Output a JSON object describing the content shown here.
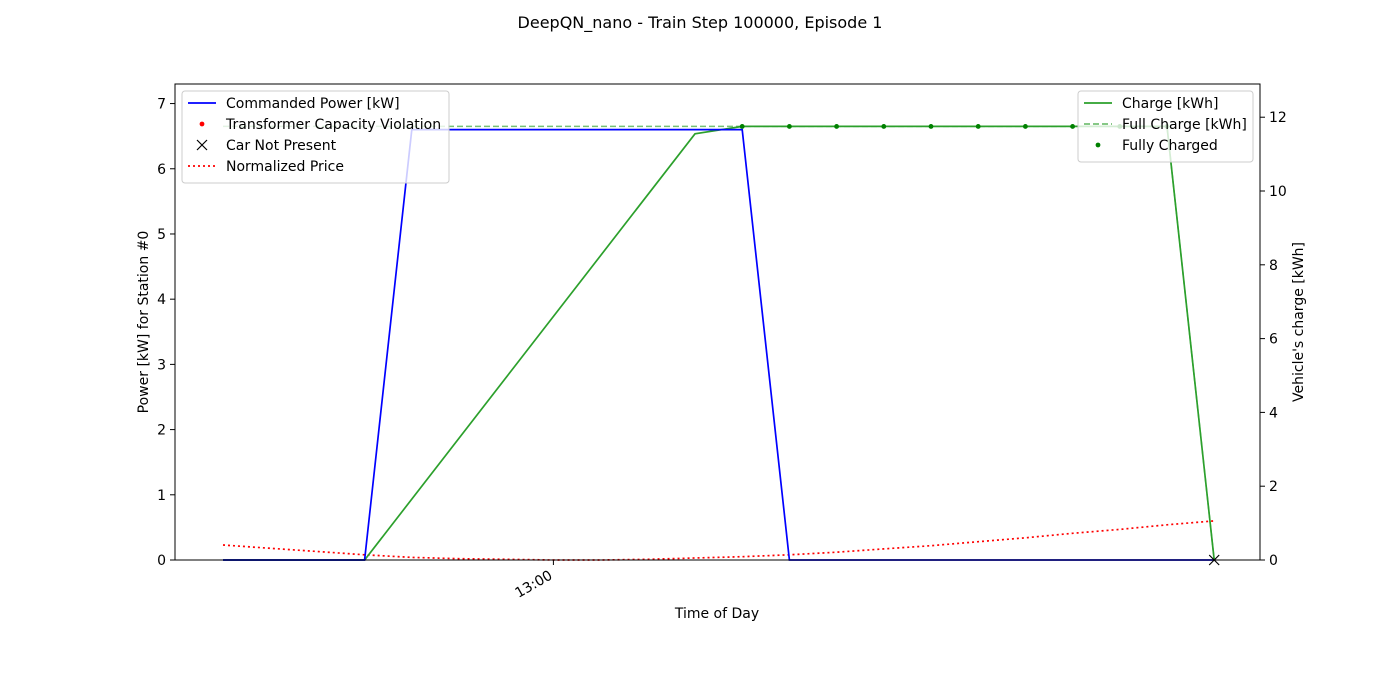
{
  "chart_data": {
    "type": "line",
    "title": "DeepQN_nano - Train Step 100000, Episode 1",
    "xlabel": "Time of Day",
    "ylabel_left": "Power [kW] for Station #0",
    "ylabel_right": "Vehicle's charge [kWh]",
    "x_tick_labels": [
      "13:00"
    ],
    "x_tick_step_index": 7,
    "x_steps": [
      0,
      1,
      2,
      3,
      4,
      5,
      6,
      7,
      8,
      9,
      10,
      11,
      12,
      13,
      14,
      15,
      16,
      17,
      18,
      19,
      20,
      21
    ],
    "ylim_left": [
      0,
      7.3
    ],
    "ylim_right": [
      0,
      12.9
    ],
    "yticks_left": [
      "0",
      "1",
      "2",
      "3",
      "4",
      "5",
      "6",
      "7"
    ],
    "yticks_right": [
      "0",
      "2",
      "4",
      "6",
      "8",
      "10",
      "12"
    ],
    "grid": false,
    "legend_left_placement": "upper-left",
    "legend_right_placement": "upper-right",
    "legend_left": [
      {
        "label": "Commanded Power [kW]",
        "marker": "line",
        "color": "#0000ff"
      },
      {
        "label": "Transformer Capacity Violation",
        "marker": "dot",
        "color": "#ff0000"
      },
      {
        "label": "Car Not Present",
        "marker": "x",
        "color": "#000000"
      },
      {
        "label": "Normalized Price",
        "marker": "dotted",
        "color": "#ff0000"
      }
    ],
    "legend_right": [
      {
        "label": "Charge [kWh]",
        "marker": "line",
        "color": "#2ca02c"
      },
      {
        "label": "Full Charge [kWh]",
        "marker": "dashed",
        "color": "#2ca02c"
      },
      {
        "label": "Fully Charged",
        "marker": "dot",
        "color": "#008000"
      }
    ],
    "series": [
      {
        "name": "Commanded Power [kW]",
        "axis": "left",
        "style": "solid",
        "color": "#0000ff",
        "x": [
          0,
          3,
          4,
          11,
          12,
          21
        ],
        "values": [
          0,
          0,
          6.6,
          6.6,
          0,
          0
        ]
      },
      {
        "name": "Normalized Price",
        "axis": "left",
        "style": "dotted",
        "color": "#ff0000",
        "x": [
          0,
          1,
          2,
          3,
          4,
          5,
          6,
          7,
          8,
          9,
          10,
          11,
          12,
          13,
          14,
          15,
          16,
          17,
          18,
          19,
          20,
          21
        ],
        "values": [
          0.23,
          0.18,
          0.13,
          0.08,
          0.04,
          0.02,
          0.01,
          0.0,
          0.0,
          0.01,
          0.03,
          0.05,
          0.08,
          0.12,
          0.17,
          0.22,
          0.28,
          0.34,
          0.41,
          0.47,
          0.54,
          0.6
        ]
      },
      {
        "name": "Charge [kWh]",
        "axis": "right",
        "style": "solid",
        "color": "#2ca02c",
        "x": [
          0,
          3,
          10,
          11,
          20,
          21
        ],
        "values": [
          0,
          0,
          11.55,
          11.75,
          11.75,
          0
        ]
      },
      {
        "name": "Full Charge [kWh]",
        "axis": "right",
        "style": "dashed",
        "color": "#2ca02c",
        "x": [
          0,
          1,
          2,
          3,
          4,
          5,
          6,
          7,
          8,
          9,
          10,
          11,
          12,
          13,
          14,
          15,
          16,
          17,
          18,
          19,
          20,
          21
        ],
        "values": [
          11.75,
          11.75,
          11.75,
          11.75,
          11.75,
          11.75,
          11.75,
          11.75,
          11.75,
          11.75,
          11.75,
          11.75,
          11.75,
          11.75,
          11.75,
          11.75,
          11.75,
          11.75,
          11.75,
          11.75,
          11.75,
          0
        ]
      },
      {
        "name": "Fully Charged",
        "axis": "right",
        "style": "points",
        "color": "#008000",
        "x": [
          11,
          12,
          13,
          14,
          15,
          16,
          17,
          18,
          19,
          20
        ],
        "values": [
          11.75,
          11.75,
          11.75,
          11.75,
          11.75,
          11.75,
          11.75,
          11.75,
          11.75,
          11.75
        ]
      },
      {
        "name": "Car Not Present",
        "axis": "right",
        "style": "x-markers",
        "color": "#000000",
        "x": [
          21
        ],
        "values": [
          0
        ]
      }
    ]
  }
}
